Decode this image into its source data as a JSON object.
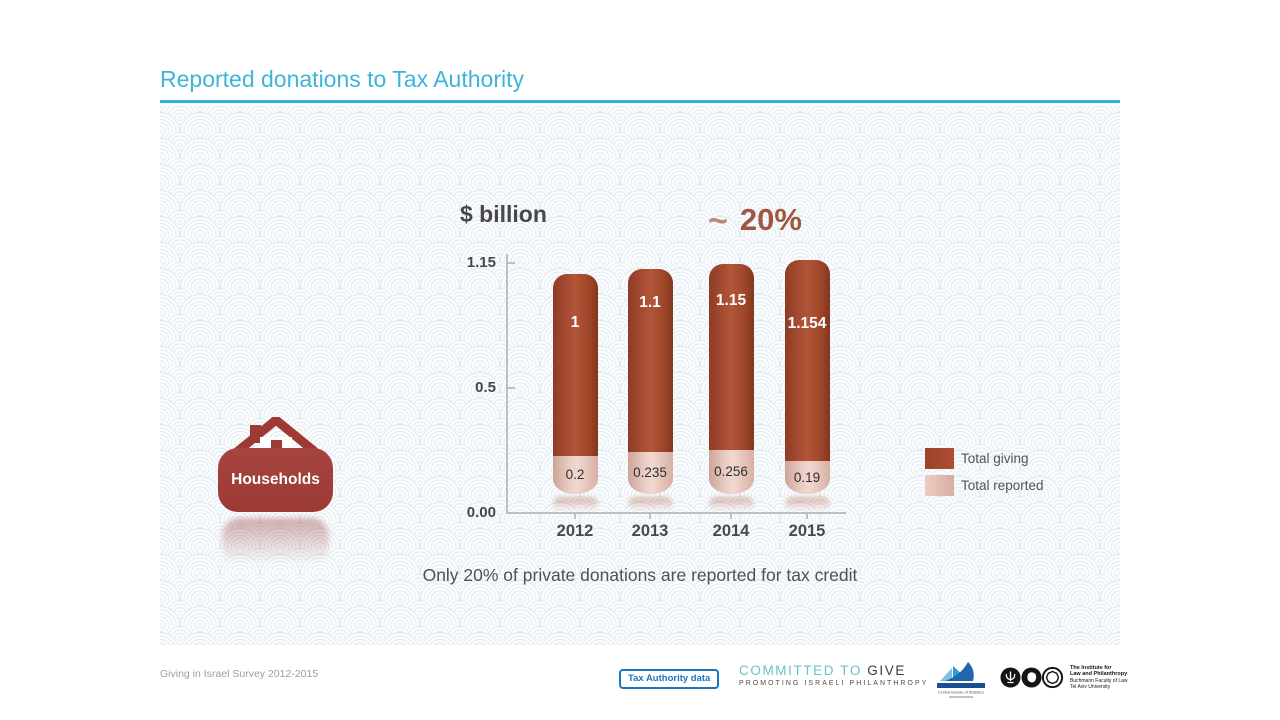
{
  "title": "Reported donations to Tax Authority",
  "chart_data": {
    "type": "bar",
    "subtype": "stacked-rounded-columns",
    "title": "",
    "ylabel": "$ billion",
    "xlabel": "",
    "categories": [
      "2012",
      "2013",
      "2014",
      "2015"
    ],
    "series": [
      {
        "name": "Total giving",
        "color": "#a34a2e",
        "values": [
          1,
          1.1,
          1.15,
          1.154
        ],
        "labels": [
          "1",
          "1.1",
          "1.15",
          "1.154"
        ]
      },
      {
        "name": "Total reported",
        "color": "#e7c6bd",
        "values": [
          0.2,
          0.235,
          0.256,
          0.19
        ],
        "labels": [
          "0.2",
          "0.235",
          "0.256",
          "0.19"
        ]
      }
    ],
    "yticks": [
      "1.15",
      "0.5",
      "0.00"
    ],
    "ylim": [
      0,
      1.15
    ],
    "grid": false,
    "legend_position": "right",
    "annotation": {
      "symbol": "~",
      "value": "20%"
    }
  },
  "entity": {
    "label": "Households"
  },
  "caption": "Only 20% of private donations are reported for tax credit",
  "footer": {
    "source": "Giving in Israel Survey 2012-2015",
    "badge": "Tax Authority data",
    "ctg_line1_left": "COMMITTED TO",
    "ctg_line1_right": " GIVE",
    "ctg_line2": "PROMOTING ISRAELI PHILANTHROPY",
    "cbs_caption": "Central Bureau of Statistics",
    "institute": {
      "line1": "The Institute for",
      "line2": "Law and Philanthropy",
      "line3": "Buchmann Faculty of Law",
      "line4": "Tel Aviv University"
    }
  },
  "colors": {
    "title_accent": "#3eb4d8",
    "rule": "#2fb5d9",
    "bar_dark": "#a34a2e",
    "bar_pink": "#e7c6bd",
    "annotation": "#a3563f"
  }
}
